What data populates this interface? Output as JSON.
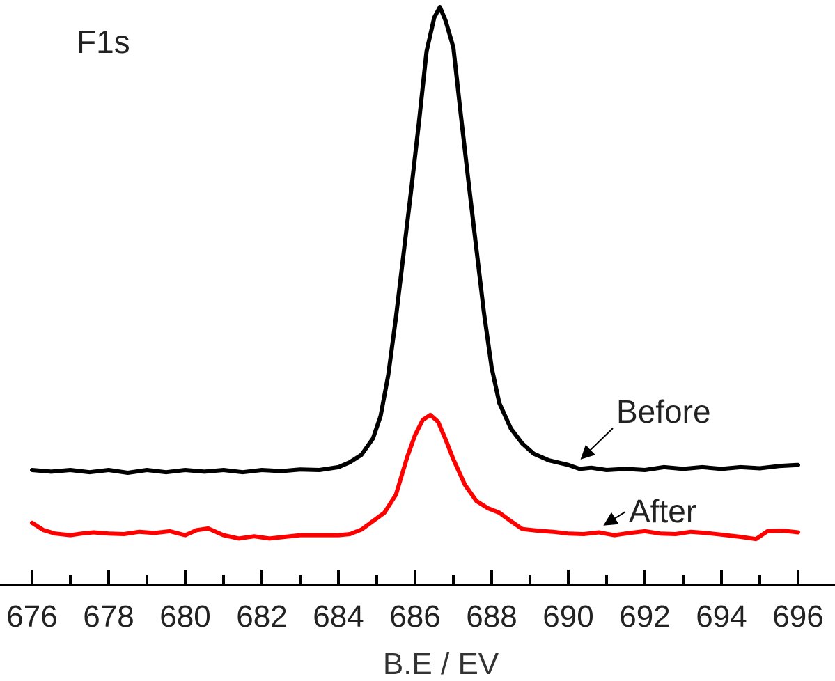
{
  "chart_data": {
    "type": "line",
    "title": "",
    "panel_label": "F1s",
    "xlabel": "B.E / EV",
    "ylabel": "",
    "xlim": [
      676,
      696
    ],
    "ylim": [
      0,
      1
    ],
    "grid": false,
    "x_ticks": [
      676,
      678,
      680,
      682,
      684,
      686,
      688,
      690,
      692,
      694,
      696
    ],
    "x_tick_labels": [
      "676",
      "678",
      "680",
      "682",
      "684",
      "686",
      "688",
      "690",
      "692",
      "694",
      "696"
    ],
    "series": [
      {
        "name": "Before",
        "color": "#000000",
        "points": [
          [
            676.0,
            0.176
          ],
          [
            676.5,
            0.173
          ],
          [
            677.0,
            0.176
          ],
          [
            677.5,
            0.172
          ],
          [
            678.0,
            0.176
          ],
          [
            678.5,
            0.171
          ],
          [
            679.0,
            0.176
          ],
          [
            679.5,
            0.172
          ],
          [
            680.0,
            0.176
          ],
          [
            680.5,
            0.173
          ],
          [
            681.0,
            0.176
          ],
          [
            681.5,
            0.172
          ],
          [
            682.0,
            0.176
          ],
          [
            682.5,
            0.174
          ],
          [
            683.0,
            0.177
          ],
          [
            683.5,
            0.176
          ],
          [
            684.0,
            0.181
          ],
          [
            684.3,
            0.19
          ],
          [
            684.6,
            0.203
          ],
          [
            684.9,
            0.232
          ],
          [
            685.1,
            0.272
          ],
          [
            685.3,
            0.345
          ],
          [
            685.5,
            0.447
          ],
          [
            685.7,
            0.561
          ],
          [
            685.9,
            0.675
          ],
          [
            686.1,
            0.794
          ],
          [
            686.3,
            0.921
          ],
          [
            686.5,
            0.981
          ],
          [
            686.65,
            1.0
          ],
          [
            686.8,
            0.975
          ],
          [
            687.0,
            0.928
          ],
          [
            687.2,
            0.805
          ],
          [
            687.4,
            0.686
          ],
          [
            687.6,
            0.57
          ],
          [
            687.8,
            0.455
          ],
          [
            688.0,
            0.358
          ],
          [
            688.2,
            0.295
          ],
          [
            688.5,
            0.25
          ],
          [
            688.8,
            0.223
          ],
          [
            689.1,
            0.205
          ],
          [
            689.5,
            0.193
          ],
          [
            690.0,
            0.185
          ],
          [
            690.3,
            0.178
          ],
          [
            690.6,
            0.18
          ],
          [
            691.0,
            0.176
          ],
          [
            691.5,
            0.178
          ],
          [
            692.0,
            0.176
          ],
          [
            692.5,
            0.181
          ],
          [
            693.0,
            0.178
          ],
          [
            693.5,
            0.181
          ],
          [
            694.0,
            0.178
          ],
          [
            694.5,
            0.181
          ],
          [
            695.0,
            0.179
          ],
          [
            695.5,
            0.183
          ],
          [
            696.0,
            0.185
          ]
        ]
      },
      {
        "name": "After",
        "color": "#ff0000",
        "points": [
          [
            676.0,
            0.082
          ],
          [
            676.3,
            0.069
          ],
          [
            676.6,
            0.063
          ],
          [
            677.0,
            0.06
          ],
          [
            677.3,
            0.063
          ],
          [
            677.6,
            0.065
          ],
          [
            678.0,
            0.063
          ],
          [
            678.4,
            0.062
          ],
          [
            678.8,
            0.066
          ],
          [
            679.2,
            0.064
          ],
          [
            679.6,
            0.067
          ],
          [
            680.0,
            0.06
          ],
          [
            680.3,
            0.069
          ],
          [
            680.6,
            0.072
          ],
          [
            681.0,
            0.06
          ],
          [
            681.4,
            0.054
          ],
          [
            681.8,
            0.058
          ],
          [
            682.2,
            0.054
          ],
          [
            682.6,
            0.057
          ],
          [
            683.0,
            0.06
          ],
          [
            683.5,
            0.06
          ],
          [
            684.0,
            0.06
          ],
          [
            684.3,
            0.062
          ],
          [
            684.6,
            0.07
          ],
          [
            684.9,
            0.085
          ],
          [
            685.2,
            0.1
          ],
          [
            685.5,
            0.132
          ],
          [
            685.8,
            0.2
          ],
          [
            686.0,
            0.238
          ],
          [
            686.2,
            0.265
          ],
          [
            686.4,
            0.274
          ],
          [
            686.6,
            0.262
          ],
          [
            686.8,
            0.23
          ],
          [
            687.0,
            0.195
          ],
          [
            687.3,
            0.15
          ],
          [
            687.6,
            0.121
          ],
          [
            687.9,
            0.108
          ],
          [
            688.2,
            0.1
          ],
          [
            688.5,
            0.085
          ],
          [
            688.8,
            0.071
          ],
          [
            689.2,
            0.068
          ],
          [
            689.6,
            0.066
          ],
          [
            690.0,
            0.063
          ],
          [
            690.4,
            0.062
          ],
          [
            690.8,
            0.065
          ],
          [
            691.2,
            0.06
          ],
          [
            691.6,
            0.064
          ],
          [
            692.0,
            0.067
          ],
          [
            692.4,
            0.063
          ],
          [
            692.8,
            0.062
          ],
          [
            693.2,
            0.066
          ],
          [
            693.6,
            0.064
          ],
          [
            694.0,
            0.061
          ],
          [
            694.5,
            0.057
          ],
          [
            694.9,
            0.053
          ],
          [
            695.2,
            0.067
          ],
          [
            695.6,
            0.068
          ],
          [
            696.0,
            0.065
          ]
        ]
      }
    ],
    "annotations": [
      {
        "text": "Before",
        "points_to": [
          690.2,
          0.184
        ]
      },
      {
        "text": "After",
        "points_to": [
          690.8,
          0.066
        ]
      }
    ]
  }
}
